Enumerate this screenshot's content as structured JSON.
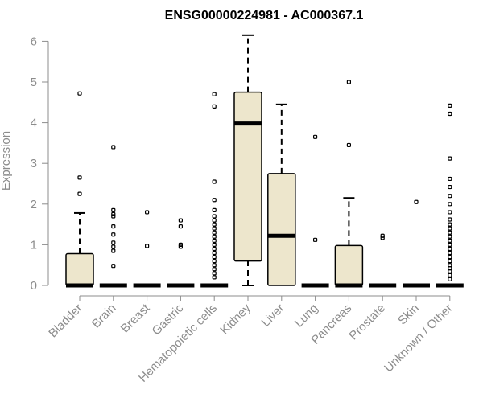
{
  "chart_data": {
    "type": "boxplot",
    "title": "ENSG00000224981 - AC000367.1",
    "ylabel": "Expression",
    "xlabel": "",
    "ylim": [
      0,
      6.2
    ],
    "yticks": [
      0,
      1,
      2,
      3,
      4,
      5,
      6
    ],
    "box_fill": "#ede6cc",
    "grid": false,
    "categories": [
      "Bladder",
      "Brain",
      "Breast",
      "Gastric",
      "Hematopoietic cells",
      "Kidney",
      "Liver",
      "Lung",
      "Pancreas",
      "Prostate",
      "Skin",
      "Unknown / Other"
    ],
    "boxes": [
      {
        "min": 0,
        "q1": 0,
        "median": 0,
        "q3": 0.78,
        "max": 1.78,
        "outliers": [
          4.72,
          2.65,
          2.25
        ]
      },
      {
        "min": 0,
        "q1": 0,
        "median": 0,
        "q3": 0,
        "max": 0,
        "outliers": [
          3.4,
          1.85,
          1.75,
          1.7,
          1.45,
          1.25,
          1.05,
          0.95,
          0.85,
          0.48
        ]
      },
      {
        "min": 0,
        "q1": 0,
        "median": 0,
        "q3": 0,
        "max": 0,
        "outliers": [
          1.8,
          0.97
        ]
      },
      {
        "min": 0,
        "q1": 0,
        "median": 0,
        "q3": 0,
        "max": 0,
        "outliers": [
          1.6,
          1.45,
          1.0,
          0.95
        ]
      },
      {
        "min": 0,
        "q1": 0,
        "median": 0,
        "q3": 0,
        "max": 0,
        "outliers": [
          4.7,
          4.4,
          2.55,
          2.1,
          1.85,
          1.7,
          1.6,
          1.5,
          1.4,
          1.3,
          1.2,
          1.1,
          1.0,
          0.9,
          0.8,
          0.7,
          0.6,
          0.5,
          0.4,
          0.3,
          0.2
        ]
      },
      {
        "min": 0,
        "q1": 0.6,
        "median": 3.98,
        "q3": 4.75,
        "max": 6.15,
        "outliers": []
      },
      {
        "min": 0,
        "q1": 0,
        "median": 1.22,
        "q3": 2.75,
        "max": 4.45,
        "outliers": []
      },
      {
        "min": 0,
        "q1": 0,
        "median": 0,
        "q3": 0,
        "max": 0,
        "outliers": [
          3.65,
          1.12
        ]
      },
      {
        "min": 0,
        "q1": 0,
        "median": 0,
        "q3": 0.98,
        "max": 2.15,
        "outliers": [
          5.0,
          3.45
        ]
      },
      {
        "min": 0,
        "q1": 0,
        "median": 0,
        "q3": 0,
        "max": 0,
        "outliers": [
          1.22,
          1.17
        ]
      },
      {
        "min": 0,
        "q1": 0,
        "median": 0,
        "q3": 0,
        "max": 0,
        "outliers": [
          2.05
        ]
      },
      {
        "min": 0,
        "q1": 0,
        "median": 0,
        "q3": 0,
        "max": 0,
        "outliers": [
          4.42,
          4.22,
          3.12,
          2.62,
          2.42,
          2.2,
          2.0,
          1.8,
          1.62,
          1.5,
          1.4,
          1.3,
          1.2,
          1.1,
          1.0,
          0.9,
          0.8,
          0.7,
          0.6,
          0.5,
          0.42,
          0.35,
          0.25,
          0.15
        ]
      }
    ]
  }
}
